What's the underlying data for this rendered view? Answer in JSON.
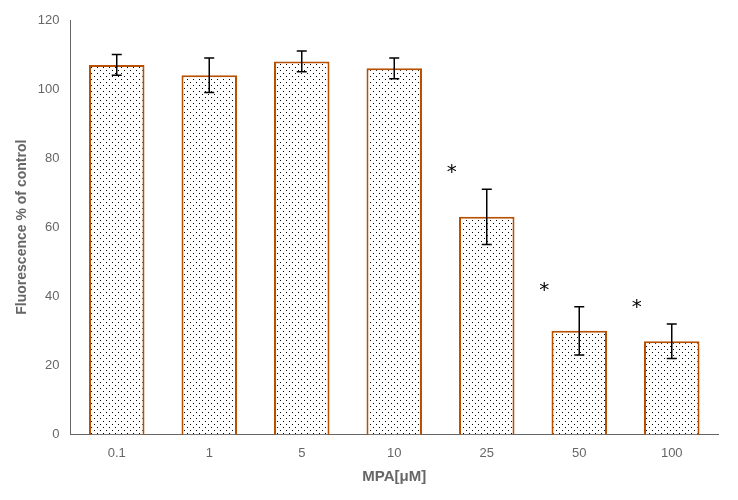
{
  "chart_data": {
    "type": "bar",
    "categories": [
      "0.1",
      "1",
      "5",
      "10",
      "25",
      "50",
      "100"
    ],
    "values": [
      107,
      104,
      108,
      106,
      63,
      30,
      27
    ],
    "errors": [
      3,
      5,
      3,
      3,
      8,
      7,
      5
    ],
    "annotations": [
      {
        "x": "25",
        "text": "*"
      },
      {
        "x": "50",
        "text": "*"
      },
      {
        "x": "100",
        "text": "*"
      }
    ],
    "color": "#b85000",
    "xlabel": "MPA[μM]",
    "ylabel": "Fluorescence % of control",
    "ylim": [
      0,
      120
    ],
    "yticks": [
      0,
      20,
      40,
      60,
      80,
      100,
      120
    ],
    "grid": false
  }
}
